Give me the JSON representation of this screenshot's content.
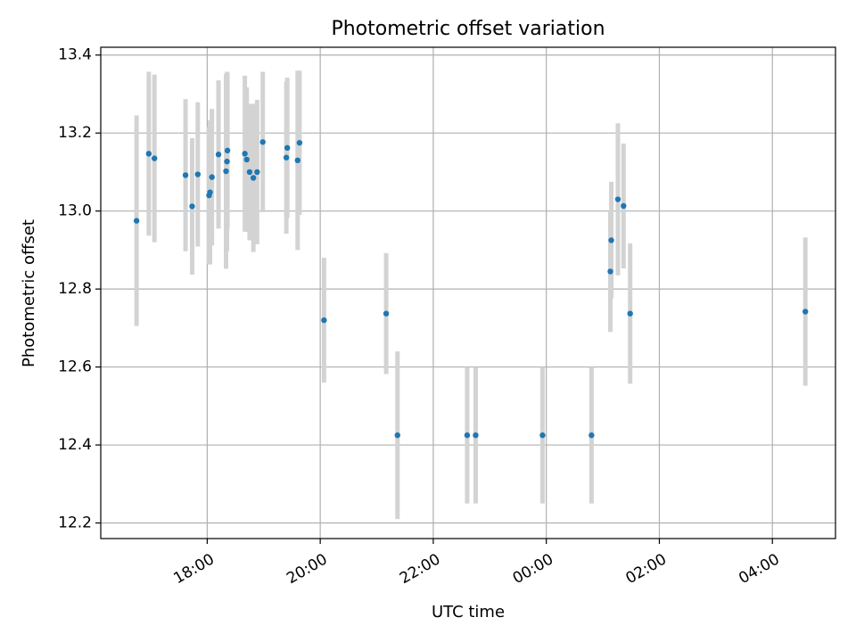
{
  "chart_data": {
    "type": "scatter",
    "title": "Photometric offset variation",
    "xlabel": "UTC time",
    "ylabel": "Photometric offset",
    "xlim": [
      "2000-01-01T16:07:00",
      "2000-01-02T05:07:00"
    ],
    "ylim": [
      12.16,
      13.42
    ],
    "grid": true,
    "x_ticks": [
      {
        "value": "2000-01-01T18:00:00",
        "label": "18:00"
      },
      {
        "value": "2000-01-01T20:00:00",
        "label": "20:00"
      },
      {
        "value": "2000-01-01T22:00:00",
        "label": "22:00"
      },
      {
        "value": "2000-01-02T00:00:00",
        "label": "00:00"
      },
      {
        "value": "2000-01-02T02:00:00",
        "label": "02:00"
      },
      {
        "value": "2000-01-02T04:00:00",
        "label": "04:00"
      }
    ],
    "y_ticks": [
      {
        "value": 12.2,
        "label": "12.2"
      },
      {
        "value": 12.4,
        "label": "12.4"
      },
      {
        "value": 12.6,
        "label": "12.6"
      },
      {
        "value": 12.8,
        "label": "12.8"
      },
      {
        "value": 13.0,
        "label": "13.0"
      },
      {
        "value": 13.2,
        "label": "13.2"
      },
      {
        "value": 13.4,
        "label": "13.4"
      }
    ],
    "colors": {
      "points": "#1f77b4",
      "error_bars": "#d3d3d3"
    },
    "points": [
      {
        "x": "2000-01-01T16:45:00",
        "y": 12.975,
        "err": 0.27
      },
      {
        "x": "2000-01-01T16:58:00",
        "y": 13.147,
        "err": 0.21
      },
      {
        "x": "2000-01-01T17:04:00",
        "y": 13.135,
        "err": 0.215
      },
      {
        "x": "2000-01-01T17:37:00",
        "y": 13.092,
        "err": 0.195
      },
      {
        "x": "2000-01-01T17:44:00",
        "y": 13.012,
        "err": 0.175
      },
      {
        "x": "2000-01-01T17:50:00",
        "y": 13.094,
        "err": 0.185
      },
      {
        "x": "2000-01-01T18:02:00",
        "y": 13.04,
        "err": 0.175
      },
      {
        "x": "2000-01-01T18:03:00",
        "y": 13.048,
        "err": 0.185
      },
      {
        "x": "2000-01-01T18:05:00",
        "y": 13.087,
        "err": 0.175
      },
      {
        "x": "2000-01-01T18:12:00",
        "y": 13.145,
        "err": 0.19
      },
      {
        "x": "2000-01-01T18:20:00",
        "y": 13.102,
        "err": 0.25
      },
      {
        "x": "2000-01-01T18:21:00",
        "y": 13.127,
        "err": 0.23
      },
      {
        "x": "2000-01-01T18:21:30",
        "y": 13.155,
        "err": 0.2
      },
      {
        "x": "2000-01-01T18:40:00",
        "y": 13.147,
        "err": 0.2
      },
      {
        "x": "2000-01-01T18:42:00",
        "y": 13.132,
        "err": 0.185
      },
      {
        "x": "2000-01-01T18:45:00",
        "y": 13.1,
        "err": 0.175
      },
      {
        "x": "2000-01-01T18:49:00",
        "y": 13.085,
        "err": 0.19
      },
      {
        "x": "2000-01-01T18:53:00",
        "y": 13.1,
        "err": 0.185
      },
      {
        "x": "2000-01-01T18:59:00",
        "y": 13.177,
        "err": 0.18
      },
      {
        "x": "2000-01-01T19:24:00",
        "y": 13.137,
        "err": 0.195
      },
      {
        "x": "2000-01-01T19:25:00",
        "y": 13.162,
        "err": 0.18
      },
      {
        "x": "2000-01-01T19:36:00",
        "y": 13.13,
        "err": 0.23
      },
      {
        "x": "2000-01-01T19:38:00",
        "y": 13.175,
        "err": 0.185
      },
      {
        "x": "2000-01-01T20:04:00",
        "y": 12.72,
        "err": 0.16
      },
      {
        "x": "2000-01-01T21:10:00",
        "y": 12.737,
        "err": 0.155
      },
      {
        "x": "2000-01-01T21:22:00",
        "y": 12.425,
        "err": 0.215
      },
      {
        "x": "2000-01-01T22:36:00",
        "y": 12.425,
        "err": 0.175
      },
      {
        "x": "2000-01-01T22:45:00",
        "y": 12.425,
        "err": 0.175
      },
      {
        "x": "2000-01-01T23:56:00",
        "y": 12.425,
        "err": 0.175
      },
      {
        "x": "2000-01-02T00:48:00",
        "y": 12.425,
        "err": 0.175
      },
      {
        "x": "2000-01-02T01:08:00",
        "y": 12.845,
        "err": 0.155
      },
      {
        "x": "2000-01-02T01:09:00",
        "y": 12.925,
        "err": 0.15
      },
      {
        "x": "2000-01-02T01:16:00",
        "y": 13.03,
        "err": 0.195
      },
      {
        "x": "2000-01-02T01:22:00",
        "y": 13.013,
        "err": 0.16
      },
      {
        "x": "2000-01-02T01:29:00",
        "y": 12.737,
        "err": 0.18
      },
      {
        "x": "2000-01-02T04:35:00",
        "y": 12.742,
        "err": 0.19
      }
    ]
  }
}
